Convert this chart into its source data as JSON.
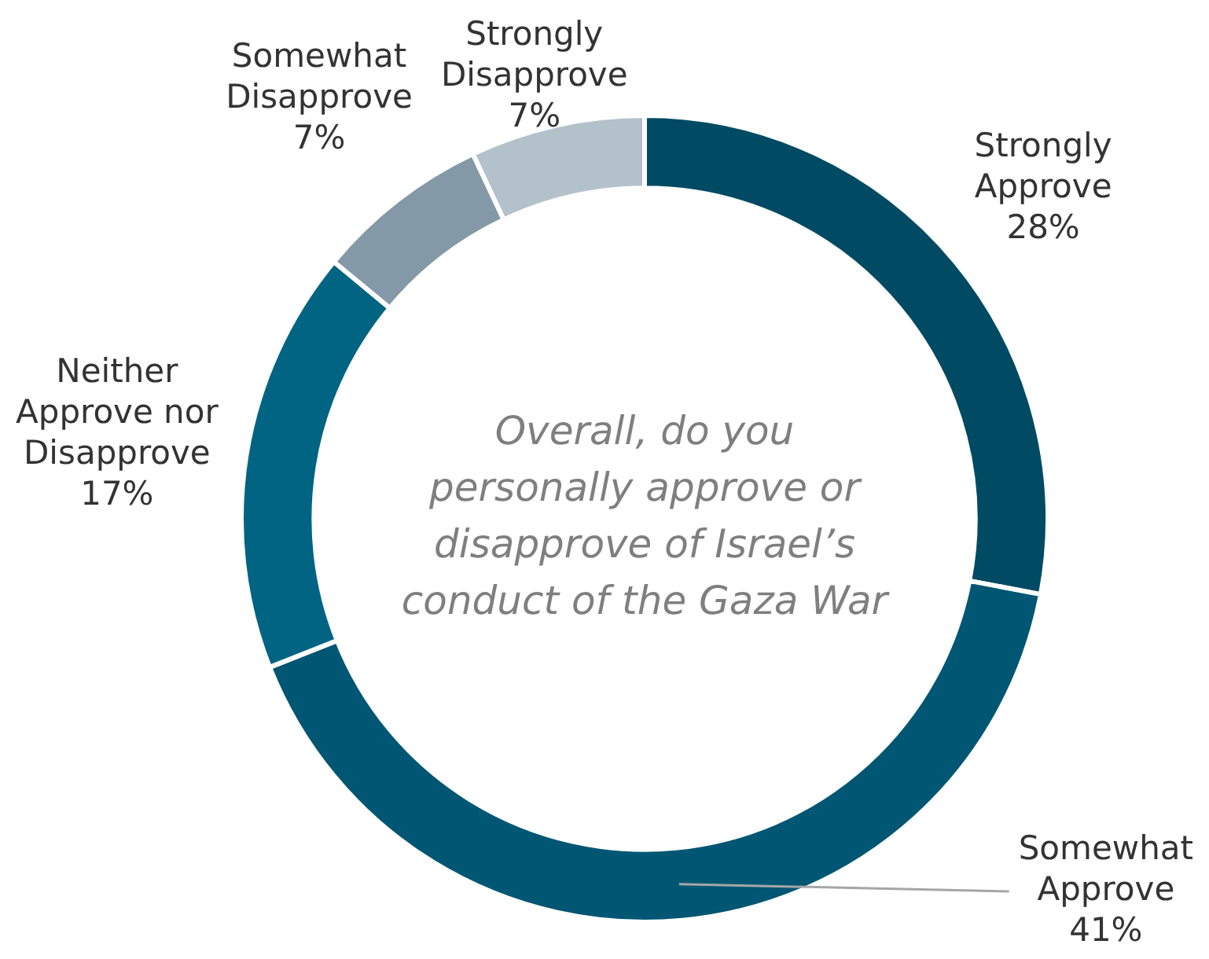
{
  "chart_data": {
    "type": "donut",
    "title": "Overall, do you personally approve or disapprove of Israel’s conduct of the Gaza War",
    "categories": [
      "Strongly Approve",
      "Somewhat Approve",
      "Neither Approve nor Disapprove",
      "Somewhat Disapprove",
      "Strongly Disapprove"
    ],
    "values": [
      28,
      41,
      17,
      7,
      7
    ],
    "value_labels": [
      "28%",
      "41%",
      "17%",
      "7%",
      "7%"
    ],
    "colors": [
      "#004a63",
      "#005673",
      "#006482",
      "#8399a8",
      "#b3c1cb"
    ],
    "legend": false
  }
}
